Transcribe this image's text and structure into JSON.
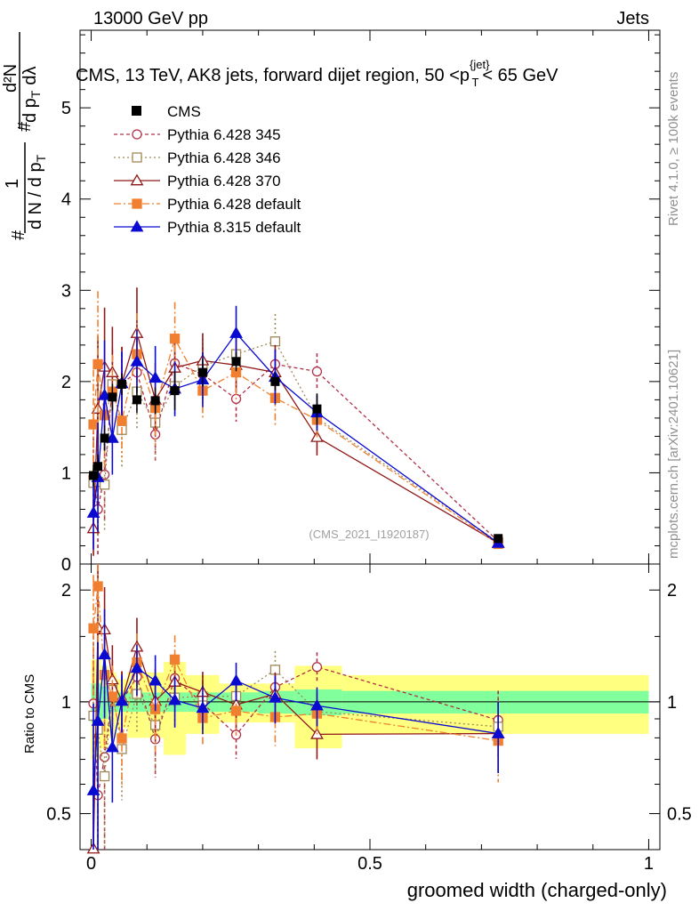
{
  "header": {
    "left": "13000 GeV pp",
    "right": "Jets"
  },
  "side_labels": {
    "rivet": "Rivet 4.1.0, ≥ 100k events",
    "mcplots": "mcplots.cern.ch [arXiv:2401.10621]"
  },
  "chart_data": {
    "type": "scatter",
    "title": "CMS, 13 TeV, AK8 jets, forward dijet region, 50 <p_T^{jet}< 65 GeV",
    "title_parts": {
      "a": "CMS, 13 TeV, AK8 jets, forward dijet region, 50 <p",
      "sup": "{jet}",
      "sub": "T",
      "b": "< 65 GeV"
    },
    "watermark": "(CMS_2021_I1920187)",
    "xlabel": "groomed width (charged-only)",
    "ylabel_main": {
      "frac_num": "1",
      "frac_den": "d N / d p",
      "frac_den_sub": "T",
      "hash1": "#",
      "hash2": "#",
      "d2n": "d²N",
      "dpt_dl": "d p",
      "dpt_dl_sub": "T",
      "dl": "dλ"
    },
    "ylabel_ratio": "Ratio to CMS",
    "xlim": [
      -0.02,
      1.02
    ],
    "ylim_main": [
      0,
      5.85
    ],
    "ylim_ratio": [
      0.4,
      2.35
    ],
    "x_ticks": [
      0,
      0.5,
      1
    ],
    "x_tick_labels": [
      "0",
      "0.5",
      "1"
    ],
    "y_ticks_main": [
      0,
      1,
      2,
      3,
      4,
      5
    ],
    "y_tick_labels_main": [
      "0",
      "1",
      "2",
      "3",
      "4",
      "5"
    ],
    "y_ticks_ratio": [
      0.5,
      1,
      2
    ],
    "y_tick_labels_ratio": [
      "0.5",
      "1",
      "2"
    ],
    "bin_edges": [
      0,
      0.0075,
      0.0175,
      0.03,
      0.045,
      0.065,
      0.1,
      0.13,
      0.17,
      0.23,
      0.3,
      0.365,
      0.45,
      1
    ],
    "x": [
      0.004,
      0.012,
      0.024,
      0.038,
      0.055,
      0.082,
      0.115,
      0.15,
      0.2,
      0.26,
      0.33,
      0.405,
      0.73
    ],
    "reference": {
      "name": "CMS",
      "values": [
        0.97,
        1.07,
        1.38,
        1.83,
        1.97,
        1.8,
        1.79,
        1.9,
        2.1,
        2.22,
        2.0,
        1.7,
        0.28
      ],
      "stat_rel": [
        0.12,
        0.12,
        0.1,
        0.06,
        0.06,
        0.06,
        0.06,
        0.06,
        0.06,
        0.06,
        0.07,
        0.08,
        0.07
      ],
      "total_rel": [
        0.3,
        0.3,
        0.25,
        0.2,
        0.15,
        0.2,
        0.2,
        0.28,
        0.18,
        0.12,
        0.12,
        0.25,
        0.18
      ]
    },
    "series": [
      {
        "name": "Pythia 6.428 345",
        "color": "#b03048",
        "dash": "4,3",
        "marker": "circle",
        "filled": false,
        "values": [
          0.96,
          0.6,
          0.98,
          1.95,
          1.98,
          2.1,
          1.42,
          2.2,
          2.08,
          1.81,
          2.19,
          2.11,
          0.25
        ],
        "err": [
          0.5,
          0.5,
          0.5,
          0.4,
          0.4,
          0.35,
          0.3,
          0.25,
          0.3,
          0.25,
          0.3,
          0.2,
          0.05
        ]
      },
      {
        "name": "Pythia 6.428 346",
        "color": "#a08858",
        "dash": "2,3",
        "marker": "square",
        "filled": false,
        "values": [
          0.89,
          0.9,
          0.87,
          1.97,
          1.47,
          1.89,
          1.55,
          1.95,
          2.17,
          2.3,
          2.44,
          1.6,
          0.24
        ],
        "err": [
          0.5,
          0.6,
          0.5,
          0.4,
          0.4,
          0.4,
          0.4,
          0.3,
          0.3,
          0.25,
          0.3,
          0.2,
          0.05
        ]
      },
      {
        "name": "Pythia 6.428 370",
        "color": "#901818",
        "dash": "",
        "marker": "triangle",
        "filled": false,
        "values": [
          0.39,
          1.7,
          2.16,
          2.1,
          1.98,
          2.53,
          1.8,
          2.15,
          2.23,
          2.18,
          2.1,
          1.39,
          0.23
        ],
        "err": [
          0.3,
          0.8,
          0.65,
          0.5,
          0.4,
          0.5,
          0.4,
          0.3,
          0.3,
          0.3,
          0.3,
          0.2,
          0.05
        ]
      },
      {
        "name": "Pythia 6.428 default",
        "color": "#f08030",
        "dash": "8,3,2,3",
        "marker": "square",
        "filled": true,
        "values": [
          1.53,
          2.19,
          1.63,
          1.89,
          1.57,
          2.3,
          1.71,
          2.47,
          1.9,
          2.1,
          1.82,
          1.58,
          0.22
        ],
        "err": [
          0.6,
          0.8,
          0.6,
          0.4,
          0.4,
          0.45,
          0.4,
          0.4,
          0.3,
          0.3,
          0.3,
          0.2,
          0.05
        ]
      },
      {
        "name": "Pythia 8.315 default",
        "color": "#0a0ad0",
        "dash": "",
        "marker": "triangle",
        "filled": true,
        "values": [
          0.56,
          0.95,
          1.85,
          1.38,
          1.98,
          2.22,
          2.04,
          1.92,
          2.02,
          2.53,
          2.05,
          1.66,
          0.23
        ],
        "err": [
          0.4,
          0.6,
          0.6,
          0.4,
          0.35,
          0.35,
          0.35,
          0.3,
          0.3,
          0.3,
          0.3,
          0.2,
          0.05
        ]
      }
    ]
  }
}
